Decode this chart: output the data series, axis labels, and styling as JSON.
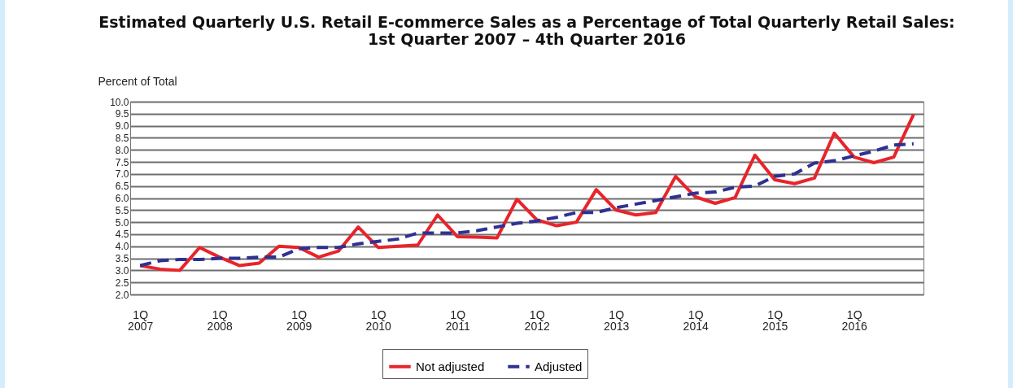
{
  "chart_data": {
    "type": "line",
    "title": "Estimated Quarterly U.S. Retail E-commerce Sales as a Percentage of Total Quarterly Retail Sales:\n1st Quarter 2007 – 4th Quarter 2016",
    "ylabel": "Percent of Total",
    "categories": [
      "1Q\n2007",
      null,
      null,
      null,
      "1Q\n2008",
      null,
      null,
      null,
      "1Q\n2009",
      null,
      null,
      null,
      "1Q\n2010",
      null,
      null,
      null,
      "1Q\n2011",
      null,
      null,
      null,
      "1Q\n2012",
      null,
      null,
      null,
      "1Q\n2013",
      null,
      null,
      null,
      "1Q\n2014",
      null,
      null,
      null,
      "1Q\n2015",
      null,
      null,
      null,
      "1Q\n2016",
      null,
      null,
      null
    ],
    "series": [
      {
        "name": "Not adjusted",
        "color": "#e8242a",
        "line_style": "solid",
        "values": [
          3.2,
          3.05,
          3.0,
          3.95,
          3.55,
          3.2,
          3.3,
          4.0,
          3.95,
          3.55,
          3.8,
          4.8,
          3.95,
          4.0,
          4.05,
          5.3,
          4.4,
          4.38,
          4.35,
          5.95,
          5.1,
          4.85,
          5.0,
          6.35,
          5.5,
          5.3,
          5.4,
          6.9,
          6.05,
          5.78,
          6.02,
          7.78,
          6.76,
          6.6,
          6.83,
          8.69,
          7.7,
          7.47,
          7.7,
          9.47
        ]
      },
      {
        "name": "Adjusted",
        "color": "#2e3192",
        "line_style": "dashed",
        "values": [
          3.2,
          3.4,
          3.45,
          3.45,
          3.5,
          3.5,
          3.55,
          3.55,
          3.9,
          3.95,
          3.95,
          4.1,
          4.2,
          4.3,
          4.55,
          4.55,
          4.55,
          4.65,
          4.8,
          4.95,
          5.05,
          5.2,
          5.4,
          5.4,
          5.6,
          5.75,
          5.9,
          6.05,
          6.2,
          6.25,
          6.45,
          6.5,
          6.9,
          7.0,
          7.45,
          7.55,
          7.75,
          7.95,
          8.2,
          8.25
        ]
      }
    ],
    "ylim": [
      2.0,
      10.0
    ],
    "yticks": [
      {
        "value": 2,
        "label": "2.0"
      },
      {
        "value": 2.5,
        "label": "2.5"
      },
      {
        "value": 3,
        "label": "3.0"
      },
      {
        "value": 3.5,
        "label": "3.5"
      },
      {
        "value": 4,
        "label": "4.0"
      },
      {
        "value": 4.5,
        "label": "4.5"
      },
      {
        "value": 5,
        "label": "5.0"
      },
      {
        "value": 5.5,
        "label": "5.5"
      },
      {
        "value": 6,
        "label": "6.0"
      },
      {
        "value": 6.5,
        "label": "6.5"
      },
      {
        "value": 7,
        "label": "7.0"
      },
      {
        "value": 7.5,
        "label": "7.5"
      },
      {
        "value": 8,
        "label": "8.0"
      },
      {
        "value": 8.5,
        "label": "8.5"
      },
      {
        "value": 9,
        "label": "9.0"
      },
      {
        "value": 9.5,
        "label": "9.5"
      },
      {
        "value": 10,
        "label": "10.0"
      }
    ],
    "grid": "y",
    "legend": "bottom",
    "marker": "none"
  }
}
